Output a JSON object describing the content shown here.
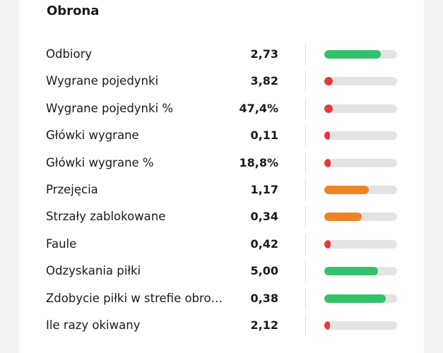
{
  "section": {
    "title": "Obrona"
  },
  "colors": {
    "green": "#33c26b",
    "red": "#e23b3b",
    "orange": "#f08423",
    "track": "#e3e3e3"
  },
  "stats": [
    {
      "label": "Odbiory",
      "value": "2,73",
      "level": 0.78,
      "color": "green"
    },
    {
      "label": "Wygrane pojedynki",
      "value": "3,82",
      "level": 0.12,
      "color": "red"
    },
    {
      "label": "Wygrane pojedynki %",
      "value": "47,4%",
      "level": 0.12,
      "color": "red"
    },
    {
      "label": "Główki wygrane",
      "value": "0,11",
      "level": 0.08,
      "color": "red"
    },
    {
      "label": "Główki wygrane %",
      "value": "18,8%",
      "level": 0.09,
      "color": "red"
    },
    {
      "label": "Przejęcia",
      "value": "1,17",
      "level": 0.61,
      "color": "orange"
    },
    {
      "label": "Strzały zablokowane",
      "value": "0,34",
      "level": 0.51,
      "color": "orange"
    },
    {
      "label": "Faule",
      "value": "0,42",
      "level": 0.09,
      "color": "red"
    },
    {
      "label": "Odzyskania piłki",
      "value": "5,00",
      "level": 0.74,
      "color": "green"
    },
    {
      "label": "Zdobycie piłki w strefie obro…",
      "value": "0,38",
      "level": 0.84,
      "color": "green"
    },
    {
      "label": "Ile razy okiwany",
      "value": "2,12",
      "level": 0.03,
      "color": "red"
    }
  ]
}
